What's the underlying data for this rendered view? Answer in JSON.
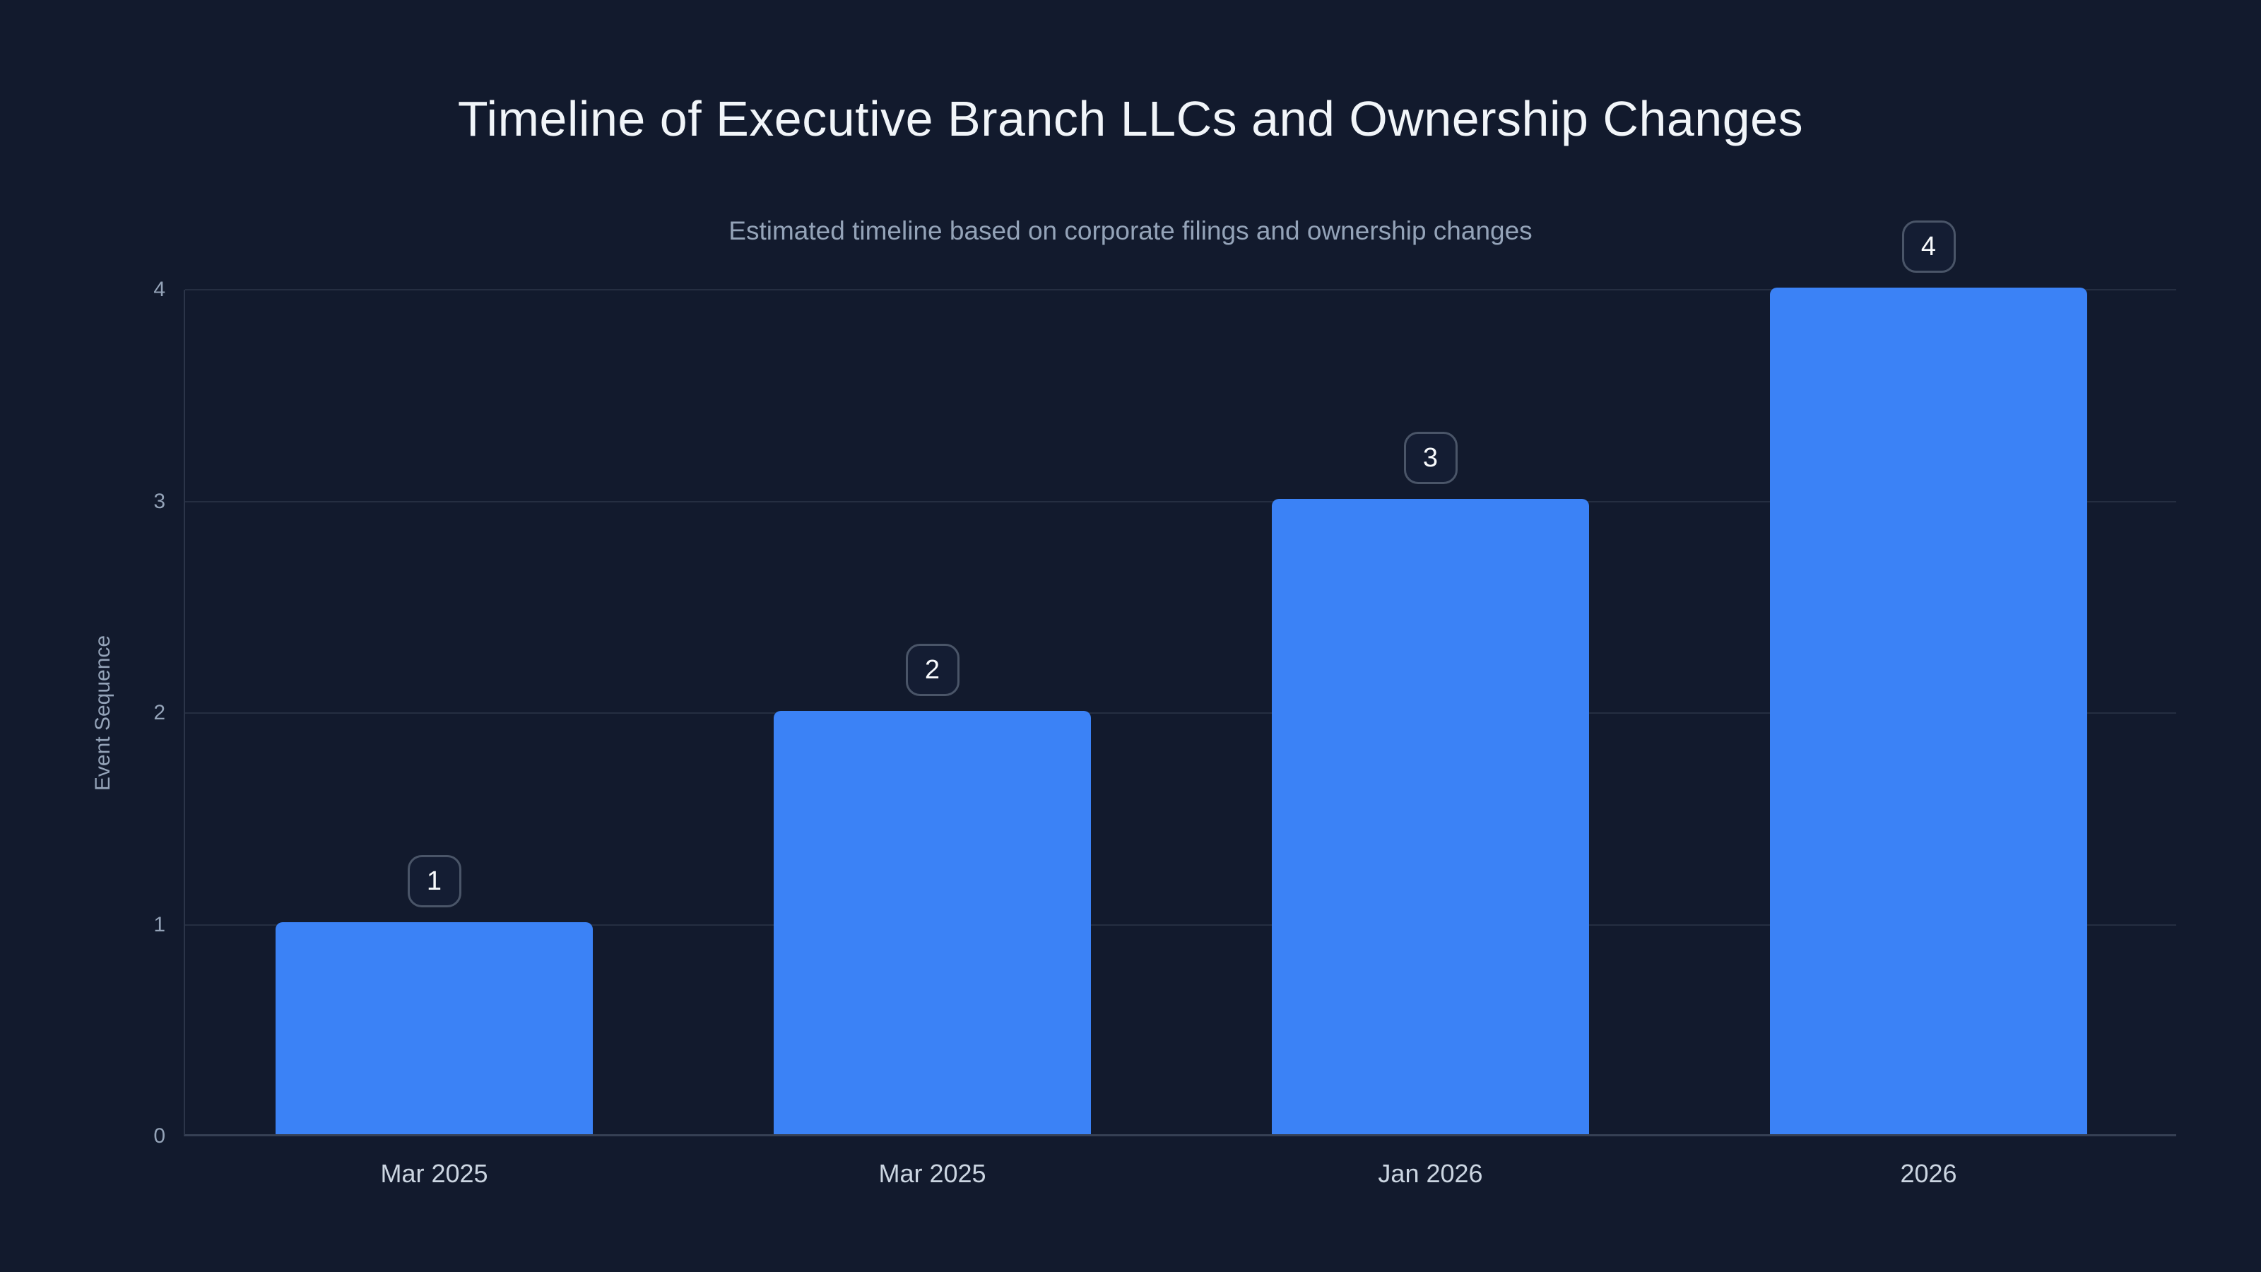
{
  "chart_data": {
    "type": "bar",
    "title": "Timeline of Executive Branch LLCs and Ownership Changes",
    "subtitle": "Estimated timeline based on corporate filings and ownership changes",
    "ylabel": "Event Sequence",
    "xlabel": "",
    "categories": [
      "Mar 2025",
      "Mar 2025",
      "Jan 2026",
      "2026"
    ],
    "values": [
      1,
      2,
      3,
      4
    ],
    "bar_badges": [
      "1",
      "2",
      "3",
      "4"
    ],
    "ylim": [
      0,
      4
    ],
    "yticks": [
      0,
      1,
      2,
      3,
      4
    ],
    "grid": true,
    "legend_position": "none",
    "colors": {
      "background": "#121a2d",
      "bar": "#3b82f6",
      "title": "#f1f5f9",
      "subtitle": "#94a3b8",
      "y_tick": "#94a3b8",
      "x_tick": "#cbd5e1",
      "gridline": "rgba(148,163,184,0.15)",
      "badge_border": "#4a5568",
      "badge_text": "#f8fafc"
    }
  }
}
